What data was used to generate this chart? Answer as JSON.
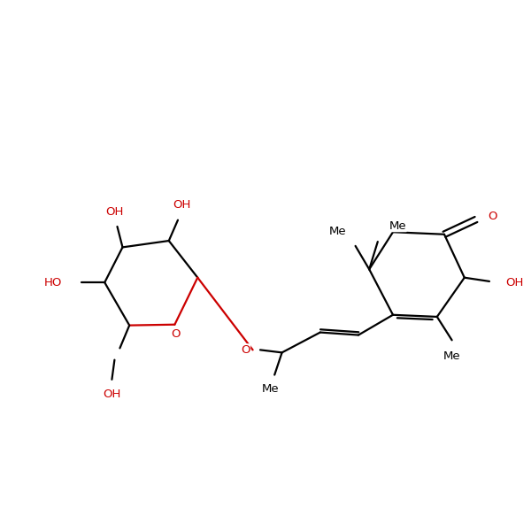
{
  "background_color": "#ffffff",
  "bond_color": "#000000",
  "heteroatom_color": "#cc0000",
  "font_size": 9.5,
  "line_width": 1.6,
  "dbo": 0.055,
  "figsize": [
    6.0,
    6.0
  ],
  "dpi": 100,
  "xlim": [
    0,
    10
  ],
  "ylim": [
    0,
    10
  ]
}
